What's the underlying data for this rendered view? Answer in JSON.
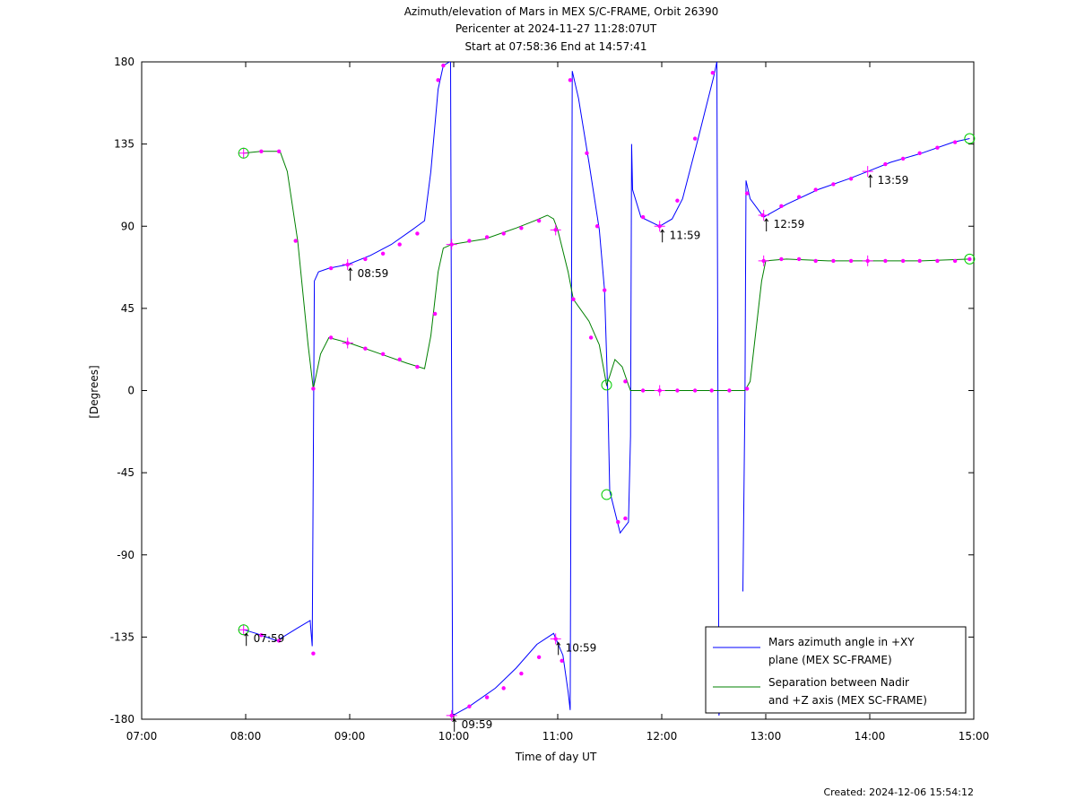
{
  "chart_data": {
    "type": "line",
    "title": [
      "Azimuth/elevation of Mars in MEX S/C-FRAME,  Orbit 26390",
      "Pericenter at 2024-11-27 11:28:07UT",
      "Start at 07:58:36 End at 14:57:41"
    ],
    "xlabel": "Time of day UT",
    "ylabel": "[Degrees]",
    "xlim": [
      7,
      15
    ],
    "ylim": [
      -180,
      180
    ],
    "x_ticks": [
      7,
      8,
      9,
      10,
      11,
      12,
      13,
      14,
      15
    ],
    "x_tick_labels": [
      "07:00",
      "08:00",
      "09:00",
      "10:00",
      "11:00",
      "12:00",
      "13:00",
      "14:00",
      "15:00"
    ],
    "y_ticks": [
      180,
      135,
      90,
      45,
      0,
      -45,
      -90,
      -135,
      -180
    ],
    "y_tick_labels": [
      "180",
      "135",
      "90",
      "45",
      "0",
      "-45",
      "-90",
      "-135",
      "-180"
    ],
    "legend_position": "bottom-right",
    "series": [
      {
        "name": "Mars azimuth angle in +XY plane (MEX SC-FRAME)",
        "legend_lines": [
          "Mars azimuth angle in +XY",
          "plane (MEX SC-FRAME)"
        ],
        "color": "#0000ff",
        "segments": [
          [
            [
              7.98,
              -131
            ],
            [
              8.1,
              -133
            ],
            [
              8.3,
              -137
            ],
            [
              8.5,
              -130
            ],
            [
              8.62,
              -126
            ],
            [
              8.64,
              -140
            ],
            [
              8.66,
              60
            ],
            [
              8.7,
              65
            ],
            [
              8.8,
              67
            ],
            [
              8.98,
              69
            ],
            [
              9.2,
              74
            ],
            [
              9.4,
              80
            ],
            [
              9.6,
              88
            ],
            [
              9.72,
              93
            ],
            [
              9.78,
              120
            ],
            [
              9.85,
              165
            ],
            [
              9.9,
              178
            ],
            [
              9.96,
              180
            ]
          ],
          [
            [
              9.97,
              180
            ],
            [
              9.99,
              -178
            ],
            [
              10.15,
              -173
            ],
            [
              10.4,
              -163
            ],
            [
              10.6,
              -152
            ],
            [
              10.8,
              -139
            ],
            [
              10.96,
              -133
            ],
            [
              11.05,
              -145
            ],
            [
              11.1,
              -165
            ],
            [
              11.12,
              -175
            ],
            [
              11.14,
              175
            ],
            [
              11.2,
              160
            ],
            [
              11.3,
              125
            ],
            [
              11.4,
              88
            ],
            [
              11.45,
              55
            ],
            [
              11.48,
              0
            ],
            [
              11.5,
              -55
            ],
            [
              11.6,
              -78
            ],
            [
              11.68,
              -72
            ],
            [
              11.7,
              -25
            ],
            [
              11.71,
              135
            ],
            [
              11.72,
              110
            ],
            [
              11.8,
              95
            ],
            [
              11.98,
              90
            ],
            [
              12.1,
              94
            ],
            [
              12.2,
              105
            ],
            [
              12.35,
              138
            ],
            [
              12.5,
              172
            ],
            [
              12.53,
              180
            ]
          ],
          [
            [
              12.53,
              180
            ],
            [
              12.55,
              -178
            ],
            [
              12.57,
              -170
            ]
          ],
          [
            [
              12.78,
              -110
            ],
            [
              12.8,
              -5
            ],
            [
              12.81,
              115
            ],
            [
              12.85,
              105
            ],
            [
              12.98,
              95
            ],
            [
              13.2,
              102
            ],
            [
              13.5,
              110
            ],
            [
              13.8,
              116
            ],
            [
              13.98,
              120
            ],
            [
              14.2,
              125
            ],
            [
              14.5,
              130
            ],
            [
              14.8,
              136
            ],
            [
              14.96,
              138
            ]
          ]
        ],
        "markers": [
          [
            10.98,
            -136
          ],
          [
            11.04,
            -148
          ],
          [
            11.12,
            170
          ],
          [
            11.28,
            130
          ],
          [
            11.38,
            90
          ],
          [
            11.45,
            55
          ],
          [
            11.58,
            -72
          ],
          [
            11.65,
            -70
          ],
          [
            11.82,
            95
          ],
          [
            11.98,
            90
          ],
          [
            12.15,
            104
          ],
          [
            12.32,
            138
          ],
          [
            12.49,
            174
          ],
          [
            12.82,
            108
          ],
          [
            12.97,
            96
          ],
          [
            13.15,
            101
          ],
          [
            13.32,
            106
          ],
          [
            13.48,
            110
          ],
          [
            13.65,
            113
          ],
          [
            13.82,
            116
          ],
          [
            14.15,
            124
          ],
          [
            14.32,
            127
          ],
          [
            14.48,
            130
          ],
          [
            14.65,
            133
          ],
          [
            14.82,
            136
          ],
          [
            9.98,
            -178
          ],
          [
            10.15,
            -173
          ],
          [
            10.32,
            -168
          ],
          [
            10.48,
            -163
          ],
          [
            10.65,
            -155
          ],
          [
            10.82,
            -146
          ],
          [
            8.98,
            69
          ],
          [
            9.15,
            72
          ],
          [
            9.32,
            75
          ],
          [
            9.48,
            80
          ],
          [
            9.65,
            86
          ],
          [
            9.85,
            170
          ],
          [
            9.9,
            178
          ],
          [
            8.65,
            -144
          ],
          [
            8.82,
            67
          ],
          [
            8.32,
            -137
          ],
          [
            8.15,
            -134
          ]
        ],
        "crosses": [
          [
            7.98,
            -131
          ],
          [
            8.98,
            69
          ],
          [
            9.98,
            -178
          ],
          [
            10.98,
            -136
          ],
          [
            11.98,
            90
          ],
          [
            12.98,
            96
          ],
          [
            13.98,
            120
          ]
        ]
      },
      {
        "name": "Separation between Nadir and +Z axis (MEX SC-FRAME)",
        "legend_lines": [
          "Separation between Nadir",
          "and +Z axis (MEX SC-FRAME)"
        ],
        "color": "#008000",
        "segments": [
          [
            [
              7.98,
              130
            ],
            [
              8.15,
              131
            ],
            [
              8.33,
              131
            ],
            [
              8.4,
              120
            ],
            [
              8.5,
              82
            ],
            [
              8.6,
              25
            ],
            [
              8.65,
              1
            ],
            [
              8.72,
              20
            ],
            [
              8.8,
              29
            ],
            [
              9.0,
              26
            ],
            [
              9.3,
              20
            ],
            [
              9.55,
              15
            ],
            [
              9.72,
              12
            ],
            [
              9.78,
              30
            ],
            [
              9.85,
              65
            ],
            [
              9.9,
              78
            ],
            [
              9.98,
              80
            ],
            [
              10.3,
              83
            ],
            [
              10.6,
              89
            ],
            [
              10.78,
              93
            ],
            [
              10.9,
              96
            ],
            [
              10.96,
              94
            ],
            [
              11.0,
              88
            ],
            [
              11.1,
              65
            ],
            [
              11.15,
              50
            ],
            [
              11.3,
              38
            ],
            [
              11.4,
              25
            ],
            [
              11.47,
              3
            ],
            [
              11.5,
              8
            ],
            [
              11.55,
              17
            ],
            [
              11.62,
              13
            ],
            [
              11.68,
              3
            ],
            [
              11.7,
              0
            ],
            [
              11.98,
              0
            ],
            [
              12.8,
              0
            ],
            [
              12.85,
              5
            ],
            [
              12.9,
              30
            ],
            [
              12.96,
              60
            ],
            [
              13.0,
              71
            ],
            [
              13.2,
              72
            ],
            [
              13.6,
              71
            ],
            [
              14.0,
              71
            ],
            [
              14.5,
              71
            ],
            [
              14.96,
              72
            ]
          ]
        ],
        "markers": [
          [
            8.15,
            131
          ],
          [
            8.32,
            131
          ],
          [
            8.48,
            82
          ],
          [
            8.65,
            1
          ],
          [
            8.82,
            29
          ],
          [
            8.98,
            26
          ],
          [
            9.15,
            23
          ],
          [
            9.32,
            20
          ],
          [
            9.48,
            17
          ],
          [
            9.65,
            13
          ],
          [
            9.82,
            42
          ],
          [
            9.98,
            80
          ],
          [
            10.15,
            82
          ],
          [
            10.32,
            84
          ],
          [
            10.48,
            86
          ],
          [
            10.65,
            89
          ],
          [
            10.82,
            93
          ],
          [
            10.98,
            88
          ],
          [
            11.15,
            50
          ],
          [
            11.32,
            29
          ],
          [
            11.65,
            5
          ],
          [
            11.82,
            0
          ],
          [
            11.98,
            0
          ],
          [
            12.15,
            0
          ],
          [
            12.32,
            0
          ],
          [
            12.48,
            0
          ],
          [
            12.65,
            0
          ],
          [
            12.82,
            1
          ],
          [
            12.98,
            71
          ],
          [
            13.15,
            72
          ],
          [
            13.32,
            72
          ],
          [
            13.48,
            71
          ],
          [
            13.65,
            71
          ],
          [
            13.82,
            71
          ],
          [
            13.98,
            71
          ],
          [
            14.15,
            71
          ],
          [
            14.32,
            71
          ],
          [
            14.48,
            71
          ],
          [
            14.65,
            71
          ],
          [
            14.82,
            71
          ],
          [
            14.96,
            72
          ]
        ],
        "crosses": [
          [
            7.98,
            130
          ],
          [
            8.98,
            26
          ],
          [
            9.98,
            80
          ],
          [
            10.98,
            88
          ],
          [
            11.98,
            0
          ],
          [
            12.98,
            71
          ],
          [
            13.98,
            71
          ]
        ]
      }
    ],
    "circles": [
      [
        7.98,
        130
      ],
      [
        7.98,
        -131
      ],
      [
        11.47,
        3
      ],
      [
        11.47,
        -57
      ],
      [
        14.96,
        138
      ],
      [
        14.96,
        72
      ]
    ],
    "annotations": [
      {
        "x": 7.98,
        "y": -131,
        "text": "07:59"
      },
      {
        "x": 8.98,
        "y": 69,
        "text": "08:59"
      },
      {
        "x": 9.98,
        "y": -178,
        "text": "09:59"
      },
      {
        "x": 10.98,
        "y": -136,
        "text": "10:59"
      },
      {
        "x": 11.98,
        "y": 90,
        "text": "11:59"
      },
      {
        "x": 12.98,
        "y": 96,
        "text": "12:59"
      },
      {
        "x": 13.98,
        "y": 120,
        "text": "13:59"
      }
    ]
  },
  "footer": {
    "created": "Created: 2024-12-06 15:54:12"
  }
}
